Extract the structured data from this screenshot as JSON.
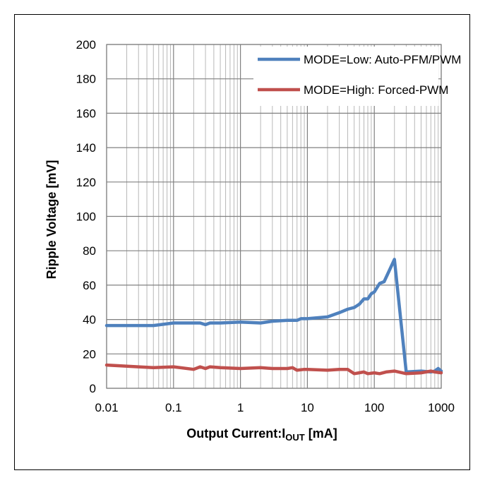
{
  "chart_data": {
    "type": "line",
    "title": "",
    "xlabel": "Output Current:I",
    "xlabel_sub": "OUT",
    "xlabel_unit": " [mA]",
    "ylabel": "Ripple Voltage [mV]",
    "xscale": "log",
    "xlim": [
      0.01,
      1000
    ],
    "ylim": [
      0,
      200
    ],
    "x_ticks": [
      "0.01",
      "0.1",
      "1",
      "10",
      "100",
      "1000"
    ],
    "y_ticks": [
      "0",
      "20",
      "40",
      "60",
      "80",
      "100",
      "120",
      "140",
      "160",
      "180",
      "200"
    ],
    "grid": true,
    "legend_position": "top-right",
    "series": [
      {
        "name": "MODE=Low: Auto-PFM/PWM",
        "color": "#4F81BD",
        "points": [
          [
            0.01,
            36.5
          ],
          [
            0.02,
            36.5
          ],
          [
            0.05,
            36.5
          ],
          [
            0.1,
            38
          ],
          [
            0.2,
            38
          ],
          [
            0.25,
            38
          ],
          [
            0.3,
            37
          ],
          [
            0.35,
            38
          ],
          [
            0.5,
            38
          ],
          [
            1,
            38.5
          ],
          [
            2,
            38
          ],
          [
            3,
            39
          ],
          [
            5,
            39.5
          ],
          [
            7,
            39.5
          ],
          [
            8,
            40.5
          ],
          [
            10,
            40.5
          ],
          [
            20,
            41.5
          ],
          [
            30,
            44
          ],
          [
            40,
            46
          ],
          [
            50,
            47
          ],
          [
            60,
            49
          ],
          [
            70,
            52
          ],
          [
            80,
            52
          ],
          [
            90,
            55
          ],
          [
            100,
            56
          ],
          [
            120,
            61
          ],
          [
            140,
            62
          ],
          [
            170,
            69
          ],
          [
            200,
            75
          ],
          [
            300,
            9.5
          ],
          [
            500,
            10
          ],
          [
            700,
            9.5
          ],
          [
            800,
            10
          ],
          [
            900,
            11.5
          ],
          [
            1000,
            10
          ]
        ]
      },
      {
        "name": "MODE=High: Forced-PWM",
        "color": "#C0504D",
        "points": [
          [
            0.01,
            13.5
          ],
          [
            0.03,
            12.5
          ],
          [
            0.05,
            12
          ],
          [
            0.1,
            12.5
          ],
          [
            0.2,
            11
          ],
          [
            0.25,
            12.5
          ],
          [
            0.3,
            11.5
          ],
          [
            0.35,
            12.5
          ],
          [
            0.5,
            12
          ],
          [
            1,
            11.5
          ],
          [
            2,
            12
          ],
          [
            3,
            11.5
          ],
          [
            5,
            11.5
          ],
          [
            6,
            12
          ],
          [
            7,
            10.5
          ],
          [
            9,
            11
          ],
          [
            10,
            11
          ],
          [
            20,
            10.5
          ],
          [
            30,
            11
          ],
          [
            40,
            11
          ],
          [
            50,
            8.5
          ],
          [
            70,
            9.5
          ],
          [
            80,
            8.5
          ],
          [
            100,
            9
          ],
          [
            120,
            8.5
          ],
          [
            150,
            9.5
          ],
          [
            200,
            10
          ],
          [
            300,
            8.5
          ],
          [
            500,
            9
          ],
          [
            700,
            10
          ],
          [
            800,
            9.5
          ],
          [
            1000,
            9
          ]
        ]
      }
    ]
  }
}
